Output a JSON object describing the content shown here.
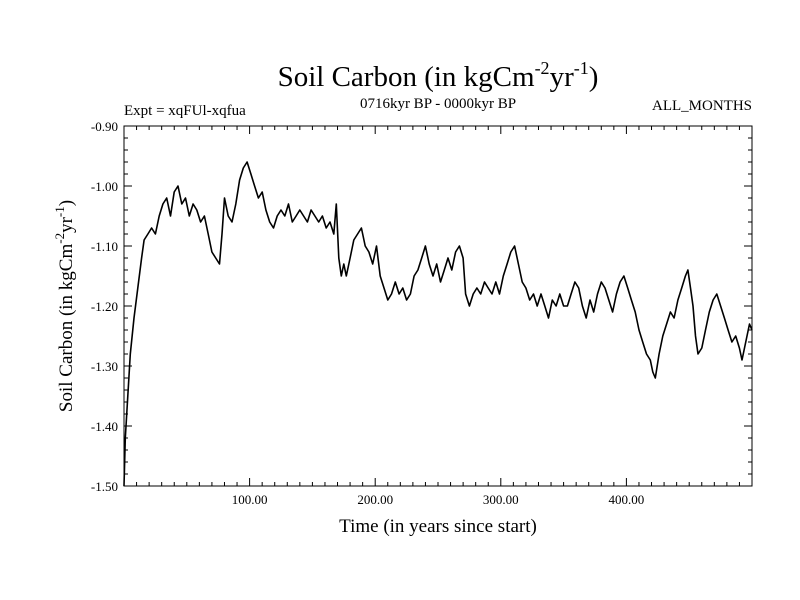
{
  "chart_data": {
    "type": "line",
    "title": {
      "main": "Soil Carbon (in kgCm",
      "sup1": "-2",
      "mid": "yr",
      "sup2": "-1",
      "end": ")"
    },
    "subtitle_left": "Expt = xqFUl-xqfua",
    "subtitle_center": "0716kyr BP - 0000kyr BP",
    "subtitle_right": "ALL_MONTHS",
    "xlabel": "Time (in years since start)",
    "ylabel": {
      "main": "Soil Carbon (in kgCm",
      "sup1": "-2",
      "mid": "yr",
      "sup2": "-1",
      "end": ")"
    },
    "xlim": [
      0,
      500
    ],
    "ylim": [
      -1.5,
      -0.9
    ],
    "x_ticks": [
      100,
      200,
      300,
      400
    ],
    "x_tick_labels": [
      "100.00",
      "200.00",
      "300.00",
      "400.00"
    ],
    "y_ticks": [
      -0.9,
      -1.0,
      -1.1,
      -1.2,
      -1.3,
      -1.4,
      -1.5
    ],
    "y_tick_labels": [
      "-0.90",
      "-1.00",
      "-1.10",
      "-1.20",
      "-1.30",
      "-1.40",
      "-1.50"
    ],
    "series": [
      {
        "name": "Soil Carbon",
        "color": "#000000",
        "points": [
          [
            0,
            -1.5
          ],
          [
            1,
            -1.42
          ],
          [
            3,
            -1.35
          ],
          [
            5,
            -1.28
          ],
          [
            8,
            -1.22
          ],
          [
            11,
            -1.17
          ],
          [
            14,
            -1.12
          ],
          [
            16,
            -1.09
          ],
          [
            19,
            -1.08
          ],
          [
            22,
            -1.07
          ],
          [
            25,
            -1.08
          ],
          [
            28,
            -1.05
          ],
          [
            31,
            -1.03
          ],
          [
            34,
            -1.02
          ],
          [
            37,
            -1.05
          ],
          [
            40,
            -1.01
          ],
          [
            43,
            -1.0
          ],
          [
            46,
            -1.03
          ],
          [
            49,
            -1.02
          ],
          [
            52,
            -1.05
          ],
          [
            55,
            -1.03
          ],
          [
            58,
            -1.04
          ],
          [
            61,
            -1.06
          ],
          [
            64,
            -1.05
          ],
          [
            67,
            -1.08
          ],
          [
            70,
            -1.11
          ],
          [
            73,
            -1.12
          ],
          [
            76,
            -1.13
          ],
          [
            78,
            -1.08
          ],
          [
            80,
            -1.02
          ],
          [
            83,
            -1.05
          ],
          [
            86,
            -1.06
          ],
          [
            89,
            -1.03
          ],
          [
            92,
            -0.99
          ],
          [
            95,
            -0.97
          ],
          [
            98,
            -0.96
          ],
          [
            101,
            -0.98
          ],
          [
            104,
            -1.0
          ],
          [
            107,
            -1.02
          ],
          [
            110,
            -1.01
          ],
          [
            113,
            -1.04
          ],
          [
            116,
            -1.06
          ],
          [
            119,
            -1.07
          ],
          [
            122,
            -1.05
          ],
          [
            125,
            -1.04
          ],
          [
            128,
            -1.05
          ],
          [
            131,
            -1.03
          ],
          [
            134,
            -1.06
          ],
          [
            137,
            -1.05
          ],
          [
            140,
            -1.04
          ],
          [
            143,
            -1.05
          ],
          [
            146,
            -1.06
          ],
          [
            149,
            -1.04
          ],
          [
            152,
            -1.05
          ],
          [
            155,
            -1.06
          ],
          [
            158,
            -1.05
          ],
          [
            161,
            -1.07
          ],
          [
            164,
            -1.06
          ],
          [
            167,
            -1.08
          ],
          [
            169,
            -1.03
          ],
          [
            171,
            -1.12
          ],
          [
            173,
            -1.15
          ],
          [
            175,
            -1.13
          ],
          [
            177,
            -1.15
          ],
          [
            180,
            -1.12
          ],
          [
            183,
            -1.09
          ],
          [
            186,
            -1.08
          ],
          [
            189,
            -1.07
          ],
          [
            192,
            -1.1
          ],
          [
            195,
            -1.11
          ],
          [
            198,
            -1.13
          ],
          [
            201,
            -1.1
          ],
          [
            204,
            -1.15
          ],
          [
            207,
            -1.17
          ],
          [
            210,
            -1.19
          ],
          [
            213,
            -1.18
          ],
          [
            216,
            -1.16
          ],
          [
            219,
            -1.18
          ],
          [
            222,
            -1.17
          ],
          [
            225,
            -1.19
          ],
          [
            228,
            -1.18
          ],
          [
            231,
            -1.15
          ],
          [
            234,
            -1.14
          ],
          [
            237,
            -1.12
          ],
          [
            240,
            -1.1
          ],
          [
            243,
            -1.13
          ],
          [
            246,
            -1.15
          ],
          [
            249,
            -1.13
          ],
          [
            252,
            -1.16
          ],
          [
            255,
            -1.14
          ],
          [
            258,
            -1.12
          ],
          [
            261,
            -1.14
          ],
          [
            264,
            -1.11
          ],
          [
            267,
            -1.1
          ],
          [
            270,
            -1.12
          ],
          [
            272,
            -1.18
          ],
          [
            275,
            -1.2
          ],
          [
            278,
            -1.18
          ],
          [
            281,
            -1.17
          ],
          [
            284,
            -1.18
          ],
          [
            287,
            -1.16
          ],
          [
            290,
            -1.17
          ],
          [
            293,
            -1.18
          ],
          [
            296,
            -1.16
          ],
          [
            299,
            -1.18
          ],
          [
            302,
            -1.15
          ],
          [
            305,
            -1.13
          ],
          [
            308,
            -1.11
          ],
          [
            311,
            -1.1
          ],
          [
            314,
            -1.13
          ],
          [
            317,
            -1.16
          ],
          [
            320,
            -1.17
          ],
          [
            323,
            -1.19
          ],
          [
            326,
            -1.18
          ],
          [
            329,
            -1.2
          ],
          [
            332,
            -1.18
          ],
          [
            335,
            -1.2
          ],
          [
            338,
            -1.22
          ],
          [
            341,
            -1.19
          ],
          [
            344,
            -1.2
          ],
          [
            347,
            -1.18
          ],
          [
            350,
            -1.2
          ],
          [
            353,
            -1.2
          ],
          [
            356,
            -1.18
          ],
          [
            359,
            -1.16
          ],
          [
            362,
            -1.17
          ],
          [
            365,
            -1.2
          ],
          [
            368,
            -1.22
          ],
          [
            371,
            -1.19
          ],
          [
            374,
            -1.21
          ],
          [
            377,
            -1.18
          ],
          [
            380,
            -1.16
          ],
          [
            383,
            -1.17
          ],
          [
            386,
            -1.19
          ],
          [
            389,
            -1.21
          ],
          [
            392,
            -1.18
          ],
          [
            395,
            -1.16
          ],
          [
            398,
            -1.15
          ],
          [
            401,
            -1.17
          ],
          [
            404,
            -1.19
          ],
          [
            407,
            -1.21
          ],
          [
            410,
            -1.24
          ],
          [
            413,
            -1.26
          ],
          [
            416,
            -1.28
          ],
          [
            419,
            -1.29
          ],
          [
            421,
            -1.31
          ],
          [
            423,
            -1.32
          ],
          [
            426,
            -1.28
          ],
          [
            429,
            -1.25
          ],
          [
            432,
            -1.23
          ],
          [
            435,
            -1.21
          ],
          [
            438,
            -1.22
          ],
          [
            441,
            -1.19
          ],
          [
            444,
            -1.17
          ],
          [
            447,
            -1.15
          ],
          [
            449,
            -1.14
          ],
          [
            451,
            -1.17
          ],
          [
            453,
            -1.2
          ],
          [
            455,
            -1.25
          ],
          [
            457,
            -1.28
          ],
          [
            460,
            -1.27
          ],
          [
            463,
            -1.24
          ],
          [
            466,
            -1.21
          ],
          [
            469,
            -1.19
          ],
          [
            472,
            -1.18
          ],
          [
            475,
            -1.2
          ],
          [
            478,
            -1.22
          ],
          [
            481,
            -1.24
          ],
          [
            484,
            -1.26
          ],
          [
            487,
            -1.25
          ],
          [
            490,
            -1.27
          ],
          [
            492,
            -1.29
          ],
          [
            494,
            -1.27
          ],
          [
            496,
            -1.25
          ],
          [
            498,
            -1.23
          ],
          [
            500,
            -1.24
          ]
        ]
      }
    ]
  }
}
